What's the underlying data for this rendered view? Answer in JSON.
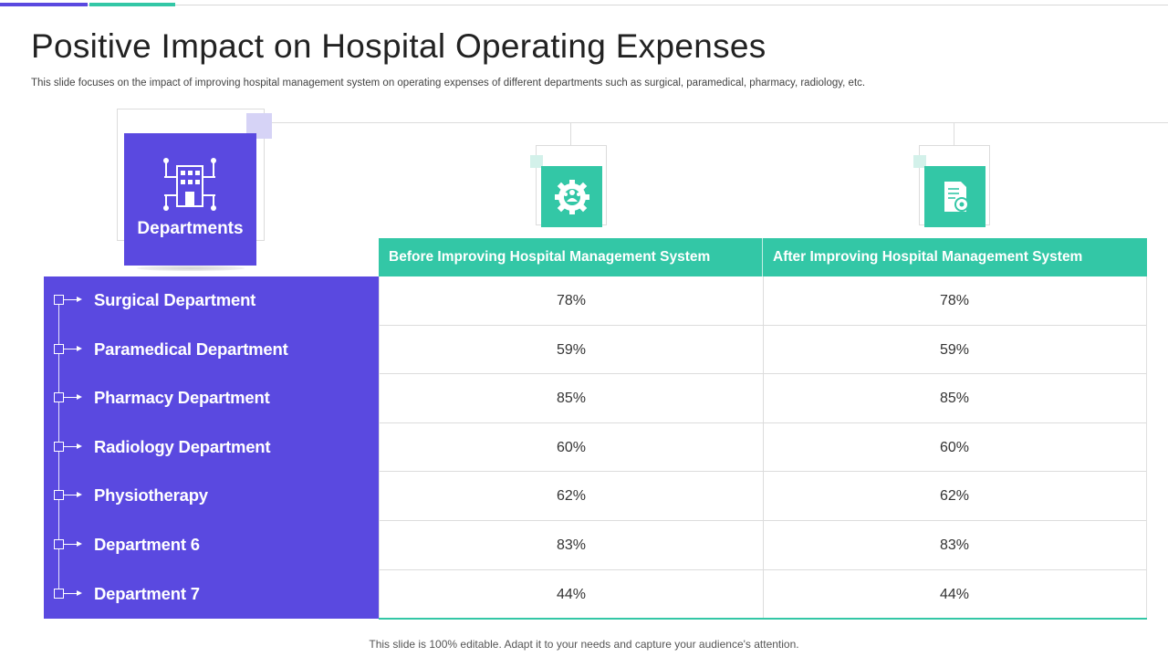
{
  "title": "Positive Impact on Hospital Operating Expenses",
  "subtitle": "This slide focuses on the impact of improving hospital management system on operating expenses of different departments such as surgical, paramedical, pharmacy, radiology, etc.",
  "departments_card": {
    "label": "Departments",
    "icon": "hospital-building-icon"
  },
  "column_icons": [
    "team-gear-icon",
    "document-gear-icon"
  ],
  "table": {
    "headers": [
      "Before Improving Hospital Management System",
      "After Improving Hospital Management System"
    ],
    "rows": [
      {
        "department": "Surgical Department",
        "before": "78%",
        "after": "78%"
      },
      {
        "department": "Paramedical Department",
        "before": "59%",
        "after": "59%"
      },
      {
        "department": "Pharmacy Department",
        "before": "85%",
        "after": "85%"
      },
      {
        "department": "Radiology Department",
        "before": "60%",
        "after": "60%"
      },
      {
        "department": "Physiotherapy",
        "before": "62%",
        "after": "62%"
      },
      {
        "department": "Department 6",
        "before": "83%",
        "after": "83%"
      },
      {
        "department": "Department 7",
        "before": "44%",
        "after": "44%"
      }
    ]
  },
  "footer": "This slide is 100% editable. Adapt it to your needs and capture your audience's attention.",
  "colors": {
    "purple": "#5a49e0",
    "teal": "#33c7a6"
  }
}
